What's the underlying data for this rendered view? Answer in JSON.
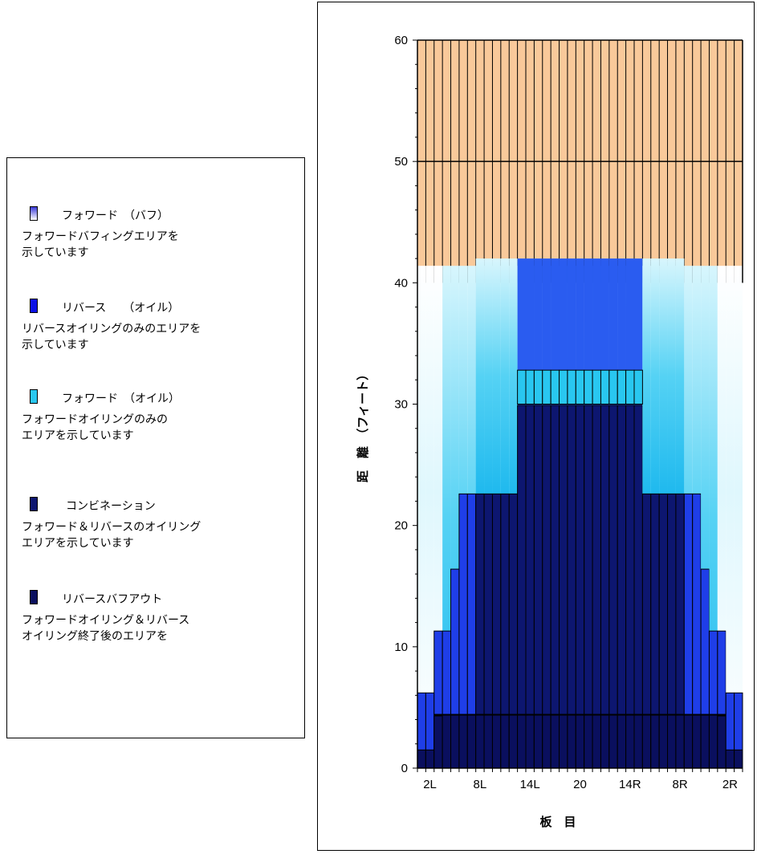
{
  "legend": {
    "items": [
      {
        "name": "buff",
        "title": "フォワード　（バフ）",
        "desc": "フォワードバフィングエリアを\n示しています",
        "color_top": "#3a3ad8",
        "color_bottom": "#ffffff"
      },
      {
        "name": "reverse-oil",
        "title": "リバース　　（オイル）",
        "desc": "リバースオイリングのみのエリアを\n示しています",
        "color": "#0a10e6"
      },
      {
        "name": "forward-oil",
        "title": "フォワード　（オイル）",
        "desc": "フォワードオイリングのみの\nエリアを示しています",
        "color": "#29c7f0"
      },
      {
        "name": "combination",
        "title": "コンビネーション",
        "desc": "フォワード＆リバースのオイリング\nエリアを示しています",
        "color": "#0d1670"
      },
      {
        "name": "reverse-buff-out",
        "title": "リバースバフアウト",
        "desc": "フォワードオイリング＆リバース\nオイリング終了後のエリアを",
        "color": "#0a0f5e"
      }
    ]
  },
  "chart_data": {
    "type": "bar",
    "xlabel": "板　目",
    "ylabel": "距　離　（フィート）",
    "ylim": [
      0,
      60
    ],
    "yticks": [
      0,
      10,
      20,
      30,
      40,
      50,
      60
    ],
    "xticks": [
      "2L",
      "8L",
      "14L",
      "20",
      "14R",
      "8R",
      "2R"
    ],
    "board_count": 39,
    "boards": [
      {
        "board": 1,
        "total": 41.4,
        "combination": 6.2,
        "reverse_buff_out": 1.5
      },
      {
        "board": 2,
        "total": 41.4,
        "combination": 6.2,
        "reverse_buff_out": 1.5
      },
      {
        "board": 3,
        "total": 41.4,
        "combination": 11.3,
        "reverse_buff_out": 4.3
      },
      {
        "board": 4,
        "total": 41.4,
        "combination": 11.3,
        "reverse_buff_out": 4.4
      },
      {
        "board": 5,
        "total": 41.4,
        "combination": 16.4,
        "reverse_buff_out": 4.4
      },
      {
        "board": 6,
        "total": 41.4,
        "combination": 22.6,
        "reverse_buff_out": 4.4
      },
      {
        "board": 7,
        "total": 41.4,
        "combination": 22.6,
        "reverse_buff_out": 4.4
      },
      {
        "board": 8,
        "total": 41.4,
        "combination": 22.6,
        "reverse_buff_out": 4.4
      },
      {
        "board": 9,
        "total": 41.4,
        "combination": 22.6,
        "reverse_buff_out": 4.4
      },
      {
        "board": 10,
        "total": 41.4,
        "combination": 22.6,
        "reverse_buff_out": 4.4
      },
      {
        "board": 11,
        "total": 41.4,
        "combination": 22.6,
        "reverse_buff_out": 4.4
      },
      {
        "board": 12,
        "total": 41.4,
        "combination": 22.6,
        "reverse_buff_out": 4.4
      },
      {
        "board": 13,
        "total": 41.4,
        "combination": 29.9,
        "reverse_buff_out": 4.4
      },
      {
        "board": 14,
        "total": 41.4,
        "combination": 29.9,
        "reverse_buff_out": 4.4
      },
      {
        "board": 15,
        "total": 41.4,
        "combination": 29.9,
        "reverse_buff_out": 4.4
      },
      {
        "board": 16,
        "total": 41.4,
        "combination": 29.9,
        "reverse_buff_out": 4.4
      },
      {
        "board": 17,
        "total": 41.4,
        "combination": 29.9,
        "reverse_buff_out": 4.4
      },
      {
        "board": 18,
        "total": 41.4,
        "combination": 29.9,
        "reverse_buff_out": 4.4
      },
      {
        "board": 19,
        "total": 41.4,
        "combination": 29.9,
        "reverse_buff_out": 4.4
      },
      {
        "board": 20,
        "total": 41.4,
        "combination": 29.9,
        "reverse_buff_out": 4.4
      },
      {
        "board": 21,
        "total": 41.4,
        "combination": 29.9,
        "reverse_buff_out": 4.4
      },
      {
        "board": 22,
        "total": 41.4,
        "combination": 29.9,
        "reverse_buff_out": 4.4
      },
      {
        "board": 23,
        "total": 41.4,
        "combination": 29.9,
        "reverse_buff_out": 4.4
      },
      {
        "board": 24,
        "total": 41.4,
        "combination": 29.9,
        "reverse_buff_out": 4.4
      },
      {
        "board": 25,
        "total": 41.4,
        "combination": 29.9,
        "reverse_buff_out": 4.4
      },
      {
        "board": 26,
        "total": 41.4,
        "combination": 29.9,
        "reverse_buff_out": 4.4
      },
      {
        "board": 27,
        "total": 41.4,
        "combination": 29.9,
        "reverse_buff_out": 4.4
      },
      {
        "board": 28,
        "total": 41.4,
        "combination": 22.6,
        "reverse_buff_out": 4.4
      },
      {
        "board": 29,
        "total": 41.4,
        "combination": 22.6,
        "reverse_buff_out": 4.4
      },
      {
        "board": 30,
        "total": 41.4,
        "combination": 22.6,
        "reverse_buff_out": 4.4
      },
      {
        "board": 31,
        "total": 41.4,
        "combination": 22.6,
        "reverse_buff_out": 4.4
      },
      {
        "board": 32,
        "total": 41.4,
        "combination": 22.6,
        "reverse_buff_out": 4.4
      },
      {
        "board": 33,
        "total": 41.4,
        "combination": 22.6,
        "reverse_buff_out": 4.4
      },
      {
        "board": 34,
        "total": 41.4,
        "combination": 22.6,
        "reverse_buff_out": 4.4
      },
      {
        "board": 35,
        "total": 41.4,
        "combination": 16.4,
        "reverse_buff_out": 4.4
      },
      {
        "board": 36,
        "total": 41.4,
        "combination": 11.3,
        "reverse_buff_out": 4.4
      },
      {
        "board": 37,
        "total": 41.4,
        "combination": 11.3,
        "reverse_buff_out": 4.3
      },
      {
        "board": 38,
        "total": 41.4,
        "combination": 6.2,
        "reverse_buff_out": 1.5
      },
      {
        "board": 39,
        "total": 41.4,
        "combination": 6.2,
        "reverse_buff_out": 1.5
      }
    ],
    "reverse_oil_top": 42,
    "forward_oil_band": [
      30,
      32.8
    ],
    "background_band": [
      40,
      60
    ],
    "colors": {
      "background_band": "#f9c99a",
      "reverse_oil": "#2a5cf0",
      "forward_oil": "#29c7f0",
      "combination": "#0d1670",
      "reverse_buff_out": "#0a0f5e",
      "mid_blue": "#1f3ee8"
    }
  }
}
